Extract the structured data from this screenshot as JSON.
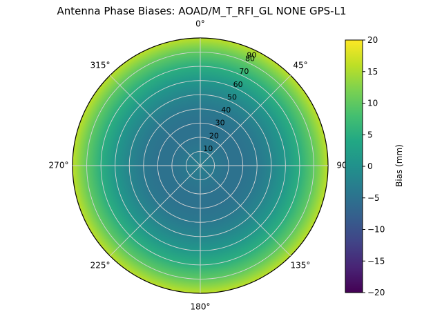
{
  "title": "Antenna Phase Biases: AOAD/M_T_RFI_GL NONE GPS-L1",
  "chart_data": {
    "type": "heatmap",
    "projection": "polar",
    "title": "Antenna Phase Biases: AOAD/M_T_RFI_GL NONE GPS-L1",
    "angular_ticks_deg": [
      0,
      45,
      90,
      135,
      180,
      225,
      270,
      315
    ],
    "angular_tick_labels": [
      "0°",
      "45°",
      "90",
      "135°",
      "180°",
      "225°",
      "270°",
      "315°"
    ],
    "radial_ticks": [
      10,
      20,
      30,
      40,
      50,
      60,
      70,
      80,
      90
    ],
    "radial_tick_labels": [
      "10",
      "20",
      "30",
      "40",
      "50",
      "60",
      "70",
      "80",
      "90"
    ],
    "radial_max": 90,
    "radial_label_angle_deg": 25,
    "grid": true,
    "colormap": "viridis",
    "colorbar": {
      "label": "Bias (mm)",
      "min": -20,
      "max": 20,
      "tick_values": [
        20,
        15,
        10,
        5,
        0,
        -5,
        -10,
        -15,
        -20
      ],
      "tick_labels": [
        "20",
        "15",
        "10",
        "5",
        "0",
        "−5",
        "−10",
        "−15",
        "−20"
      ]
    },
    "radial_profile": {
      "zenith_deg": [
        0,
        10,
        20,
        30,
        40,
        50,
        60,
        70,
        80,
        85,
        90
      ],
      "bias_mm": [
        -3,
        -4,
        -5,
        -5,
        -4,
        -2,
        1,
        5,
        10,
        13,
        16
      ]
    }
  },
  "colors": {
    "background": "#ffffff",
    "grid": "#d4d4d4",
    "outline": "#000000",
    "text": "#000000"
  }
}
